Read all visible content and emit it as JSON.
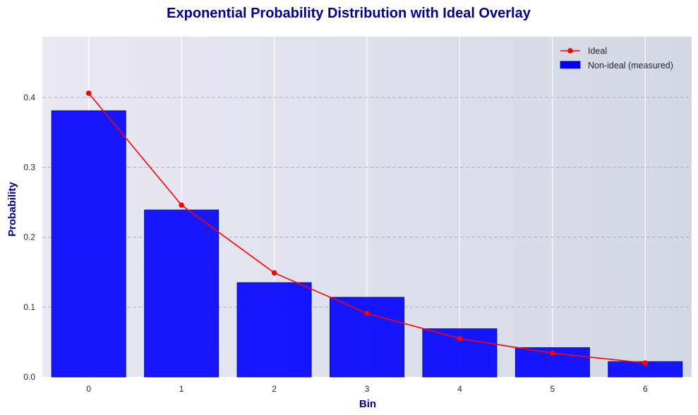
{
  "chart_data": {
    "type": "bar",
    "title": "Exponential Probability Distribution with Ideal Overlay",
    "xlabel": "Bin",
    "ylabel": "Probability",
    "categories": [
      "0",
      "1",
      "2",
      "3",
      "4",
      "5",
      "6"
    ],
    "x": [
      0,
      1,
      2,
      3,
      4,
      5,
      6
    ],
    "xlim": [
      -0.5,
      6.5
    ],
    "ylim": [
      0,
      0.487
    ],
    "yticks": [
      0.0,
      0.1,
      0.2,
      0.3,
      0.4
    ],
    "ytick_labels": [
      "0.0",
      "0.1",
      "0.2",
      "0.3",
      "0.4"
    ],
    "grid": true,
    "legend_position": "top-right",
    "series": [
      {
        "name": "Ideal",
        "type": "line",
        "marker": "circle",
        "color": "#ff0000",
        "values": [
          0.406,
          0.246,
          0.149,
          0.091,
          0.055,
          0.034,
          0.02
        ]
      },
      {
        "name": "Non-ideal (measured)",
        "type": "bar",
        "color": "#0000ff",
        "edge_color": "#00008b",
        "values": [
          0.381,
          0.239,
          0.135,
          0.114,
          0.069,
          0.042,
          0.022
        ]
      }
    ],
    "colors": {
      "title": "#00008b",
      "axis_label": "#00008b",
      "grid_horizontal": "#b0b0bc",
      "grid_vertical": "#ffffff",
      "background_left": "#e9e9f3",
      "background_right": "#d2d8e4"
    }
  }
}
